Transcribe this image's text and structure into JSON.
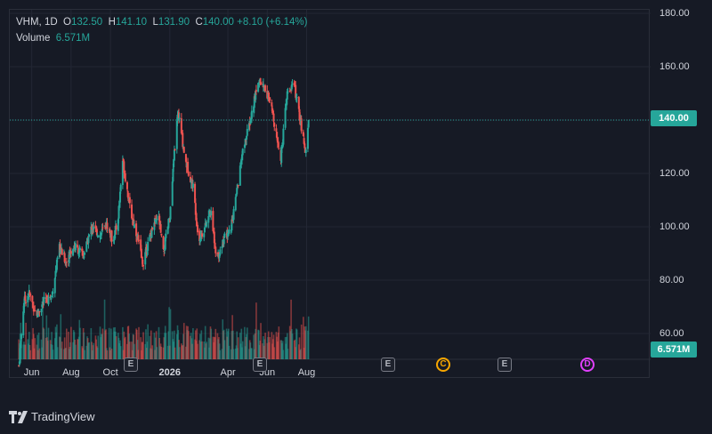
{
  "legend": {
    "symbol": "VHM, 1D",
    "open_label": "O",
    "open": "132.50",
    "high_label": "H",
    "high": "141.10",
    "low_label": "L",
    "low": "131.90",
    "close_label": "C",
    "close": "140.00",
    "change": "+8.10 (+6.14%)",
    "volume_label": "Volume",
    "volume": "6.571M"
  },
  "price_badge": "140.00",
  "volume_badge": "6.571M",
  "events": [
    {
      "type": "e",
      "label": "E"
    },
    {
      "type": "e",
      "label": "E"
    },
    {
      "type": "e",
      "label": "E"
    },
    {
      "type": "c",
      "label": "C"
    },
    {
      "type": "e",
      "label": "E"
    },
    {
      "type": "d",
      "label": "D"
    }
  ],
  "brand": "TradingView",
  "colors": {
    "up": "#26a69a",
    "down": "#ef5350",
    "background": "#161a25",
    "grid": "#232734",
    "text": "#d1d4dc"
  },
  "chart_data": {
    "type": "candlestick",
    "x_tick_labels": [
      "Jun",
      "Aug",
      "Oct",
      "2026",
      "Apr",
      "Jun",
      "Aug"
    ],
    "y_tick_labels": [
      "60.00",
      "80.00",
      "100.00",
      "120.00",
      "140.00",
      "160.00",
      "180.00"
    ],
    "ylim": [
      60,
      180
    ],
    "last_price": 140.0,
    "close_path": [
      {
        "x": "2025-05-12",
        "y": 48
      },
      {
        "x": "2025-05-20",
        "y": 72
      },
      {
        "x": "2025-05-28",
        "y": 75
      },
      {
        "x": "2025-06-08",
        "y": 67
      },
      {
        "x": "2025-06-20",
        "y": 72
      },
      {
        "x": "2025-07-02",
        "y": 74
      },
      {
        "x": "2025-07-14",
        "y": 92
      },
      {
        "x": "2025-07-24",
        "y": 87
      },
      {
        "x": "2025-08-06",
        "y": 93
      },
      {
        "x": "2025-08-20",
        "y": 89
      },
      {
        "x": "2025-09-02",
        "y": 100
      },
      {
        "x": "2025-09-15",
        "y": 97
      },
      {
        "x": "2025-09-25",
        "y": 101
      },
      {
        "x": "2025-10-04",
        "y": 95
      },
      {
        "x": "2025-10-12",
        "y": 101
      },
      {
        "x": "2025-10-20",
        "y": 125
      },
      {
        "x": "2025-11-01",
        "y": 106
      },
      {
        "x": "2025-11-12",
        "y": 96
      },
      {
        "x": "2025-11-20",
        "y": 86
      },
      {
        "x": "2025-12-05",
        "y": 100
      },
      {
        "x": "2025-12-15",
        "y": 103
      },
      {
        "x": "2025-12-22",
        "y": 90
      },
      {
        "x": "2026-01-02",
        "y": 106
      },
      {
        "x": "2026-01-08",
        "y": 128
      },
      {
        "x": "2026-01-14",
        "y": 143
      },
      {
        "x": "2026-01-25",
        "y": 125
      },
      {
        "x": "2026-02-06",
        "y": 115
      },
      {
        "x": "2026-02-15",
        "y": 95
      },
      {
        "x": "2026-02-25",
        "y": 100
      },
      {
        "x": "2026-03-05",
        "y": 106
      },
      {
        "x": "2026-03-15",
        "y": 88
      },
      {
        "x": "2026-03-25",
        "y": 95
      },
      {
        "x": "2026-04-05",
        "y": 99
      },
      {
        "x": "2026-04-14",
        "y": 112
      },
      {
        "x": "2026-04-24",
        "y": 128
      },
      {
        "x": "2026-05-06",
        "y": 140
      },
      {
        "x": "2026-05-18",
        "y": 155
      },
      {
        "x": "2026-05-29",
        "y": 152
      },
      {
        "x": "2026-06-10",
        "y": 142
      },
      {
        "x": "2026-06-22",
        "y": 126
      },
      {
        "x": "2026-07-02",
        "y": 150
      },
      {
        "x": "2026-07-12",
        "y": 154
      },
      {
        "x": "2026-07-22",
        "y": 140
      },
      {
        "x": "2026-07-30",
        "y": 128
      },
      {
        "x": "2026-08-04",
        "y": 140
      }
    ],
    "last_volume_M": 6.571
  }
}
